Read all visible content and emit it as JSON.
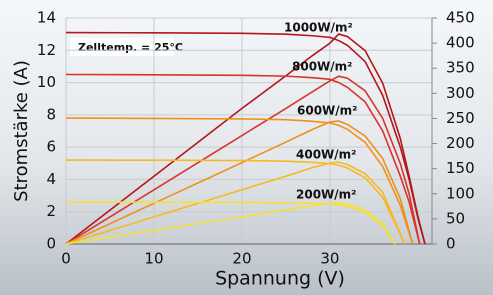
{
  "chart_data": {
    "type": "line",
    "annotation": "Zelltemp. = 25°C",
    "x_label": "Spannung (V)",
    "y_label": "Stromstärke (A)",
    "xlim": [
      0,
      41.6
    ],
    "xticks": [
      0,
      10,
      20,
      30
    ],
    "ylim": [
      0,
      14
    ],
    "yticks": [
      0,
      2,
      4,
      6,
      8,
      10,
      12,
      14
    ],
    "y2lim": [
      0,
      450
    ],
    "y2ticks": [
      0,
      50,
      100,
      150,
      200,
      250,
      300,
      350,
      400,
      450
    ],
    "grid": true,
    "series": [
      {
        "name": "1000W/m²",
        "color": "#b3161b",
        "x": [
          0,
          10,
          20,
          25,
          28,
          30,
          31,
          32,
          34,
          36,
          38,
          39,
          40,
          40.8
        ],
        "values": [
          13.1,
          13.08,
          13.05,
          13.0,
          12.9,
          12.8,
          12.6,
          12.3,
          11.3,
          9.2,
          6.0,
          4.0,
          1.6,
          0
        ],
        "power": [
          0,
          135,
          270,
          335,
          375,
          400,
          418,
          413,
          385,
          320,
          210,
          135,
          55,
          0
        ]
      },
      {
        "name": "800W/m²",
        "color": "#d9342b",
        "x": [
          0,
          10,
          20,
          25,
          28,
          30,
          31,
          32,
          34,
          36,
          38,
          39,
          40.2
        ],
        "values": [
          10.5,
          10.48,
          10.45,
          10.4,
          10.3,
          10.2,
          10.0,
          9.7,
          8.8,
          7.0,
          4.2,
          2.6,
          0
        ],
        "power": [
          0,
          108,
          216,
          270,
          303,
          325,
          334,
          330,
          305,
          250,
          160,
          100,
          0
        ]
      },
      {
        "name": "600W/m²",
        "color": "#f0901c",
        "x": [
          0,
          10,
          20,
          25,
          28,
          30,
          31,
          32,
          34,
          36,
          38,
          39.4
        ],
        "values": [
          7.8,
          7.78,
          7.75,
          7.7,
          7.6,
          7.5,
          7.35,
          7.1,
          6.3,
          4.8,
          2.4,
          0
        ],
        "power": [
          0,
          81,
          162,
          203,
          228,
          243,
          245,
          238,
          215,
          170,
          90,
          0
        ]
      },
      {
        "name": "400W/m²",
        "color": "#f6b923",
        "x": [
          0,
          10,
          20,
          25,
          28,
          30,
          31,
          32,
          34,
          36,
          38.5
        ],
        "values": [
          5.2,
          5.19,
          5.17,
          5.13,
          5.06,
          4.98,
          4.88,
          4.7,
          4.1,
          2.9,
          0
        ],
        "power": [
          0,
          54,
          108,
          135,
          152,
          161,
          163,
          158,
          140,
          103,
          0
        ]
      },
      {
        "name": "200W/m²",
        "color": "#f5e03a",
        "x": [
          0,
          10,
          20,
          25,
          28,
          30,
          31,
          32,
          34,
          36,
          37.4
        ],
        "values": [
          2.6,
          2.59,
          2.58,
          2.56,
          2.52,
          2.48,
          2.42,
          2.32,
          1.95,
          1.1,
          0
        ],
        "power": [
          0,
          27,
          54,
          68,
          76,
          81,
          82,
          79,
          68,
          40,
          0
        ]
      }
    ]
  }
}
